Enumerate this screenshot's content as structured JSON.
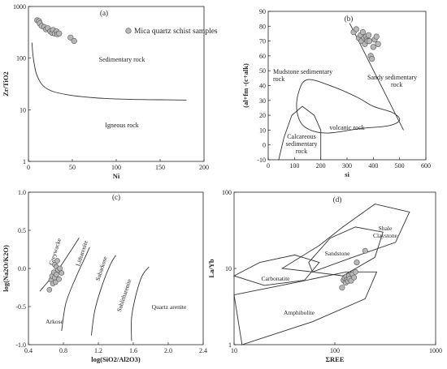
{
  "colors": {
    "marker_fill": "#b8b8b8",
    "marker_edge": "#555555",
    "line": "#333333"
  },
  "chart_data": [
    {
      "panel": "(a)",
      "type": "scatter",
      "xlabel": "Ni",
      "ylabel": "Zr/TiO2",
      "xlim": [
        0,
        200
      ],
      "ylim": [
        1,
        1000
      ],
      "yscale": "log",
      "xticks": [
        "0",
        "50",
        "100",
        "150",
        "200"
      ],
      "yticks": [
        "1",
        "10",
        "100",
        "1000"
      ],
      "legend": "Mica quartz schist samples",
      "legend_placement": "top-right",
      "regions": [
        "Sedimentary rock",
        "Igneous rock"
      ],
      "points": [
        [
          10,
          540
        ],
        [
          12,
          520
        ],
        [
          13,
          470
        ],
        [
          15,
          420
        ],
        [
          18,
          400
        ],
        [
          20,
          360
        ],
        [
          22,
          380
        ],
        [
          25,
          330
        ],
        [
          27,
          310
        ],
        [
          28,
          350
        ],
        [
          30,
          300
        ],
        [
          32,
          330
        ],
        [
          33,
          290
        ],
        [
          35,
          300
        ],
        [
          48,
          250
        ],
        [
          52,
          215
        ]
      ]
    },
    {
      "panel": "(b)",
      "type": "scatter",
      "xlabel": "si",
      "ylabel": "(al+fm -(c+alk)",
      "xlim": [
        0,
        600
      ],
      "ylim": [
        -10,
        90
      ],
      "xticks": [
        "0",
        "100",
        "200",
        "300",
        "400",
        "500",
        "600"
      ],
      "yticks": [
        "-10",
        "0",
        "10",
        "20",
        "30",
        "40",
        "50",
        "60",
        "70",
        "80",
        "90"
      ],
      "regions": [
        "Mudstone sedimentary rock",
        "Sandy sedimentary rock",
        "volcanic rock",
        "Calcareous sedimentary rock"
      ],
      "points": [
        [
          325,
          76
        ],
        [
          335,
          78
        ],
        [
          345,
          72
        ],
        [
          352,
          74
        ],
        [
          355,
          70
        ],
        [
          360,
          76
        ],
        [
          365,
          72
        ],
        [
          368,
          68
        ],
        [
          372,
          73
        ],
        [
          375,
          71
        ],
        [
          378,
          70
        ],
        [
          382,
          74
        ],
        [
          385,
          70
        ],
        [
          390,
          60
        ],
        [
          395,
          58
        ],
        [
          400,
          66
        ],
        [
          405,
          71
        ],
        [
          412,
          73
        ],
        [
          418,
          68
        ]
      ]
    },
    {
      "panel": "(c)",
      "type": "scatter",
      "xlabel": "log(SiO2/Al2O3)",
      "ylabel": "log(Na2O/K2O)",
      "xlim": [
        0.4,
        2.4
      ],
      "ylim": [
        -1.0,
        1.0
      ],
      "xticks": [
        "0.4",
        "0.8",
        "1.2",
        "1.6",
        "2.0",
        "2.4"
      ],
      "yticks": [
        "-1.0",
        "-0.5",
        "0.0",
        "0.5",
        "1.0"
      ],
      "regions": [
        "Greywacke",
        "Litharenite",
        "Subarkose",
        "Sublitharenite",
        "Quartz arenite",
        "Arkose"
      ],
      "points": [
        [
          0.64,
          -0.28
        ],
        [
          0.66,
          -0.15
        ],
        [
          0.67,
          -0.1
        ],
        [
          0.68,
          -0.2
        ],
        [
          0.69,
          -0.05
        ],
        [
          0.7,
          -0.12
        ],
        [
          0.7,
          0.05
        ],
        [
          0.71,
          -0.18
        ],
        [
          0.72,
          0.02
        ],
        [
          0.72,
          -0.08
        ],
        [
          0.73,
          0.1
        ],
        [
          0.74,
          -0.02
        ],
        [
          0.75,
          -0.14
        ],
        [
          0.76,
          0.0
        ],
        [
          0.78,
          -0.06
        ]
      ]
    },
    {
      "panel": "(d)",
      "type": "scatter",
      "xlabel": "ΣREE",
      "ylabel": "La/Yb",
      "xlim": [
        10,
        1000
      ],
      "ylim": [
        1,
        100
      ],
      "xscale": "log",
      "yscale": "log",
      "xticks": [
        "10",
        "100",
        "1000"
      ],
      "yticks": [
        "1",
        "10",
        "100"
      ],
      "regions": [
        "Shale",
        "Claystone",
        "Sandstone",
        "Carbonatite",
        "Amphibolite"
      ],
      "points": [
        [
          118,
          5.6
        ],
        [
          122,
          7.0
        ],
        [
          125,
          7.5
        ],
        [
          128,
          6.5
        ],
        [
          130,
          7.8
        ],
        [
          132,
          7.1
        ],
        [
          135,
          6.8
        ],
        [
          138,
          8.0
        ],
        [
          140,
          7.3
        ],
        [
          145,
          6.9
        ],
        [
          150,
          8.4
        ],
        [
          155,
          7.6
        ],
        [
          160,
          9.0
        ],
        [
          165,
          12.0
        ],
        [
          200,
          17.0
        ]
      ]
    }
  ]
}
